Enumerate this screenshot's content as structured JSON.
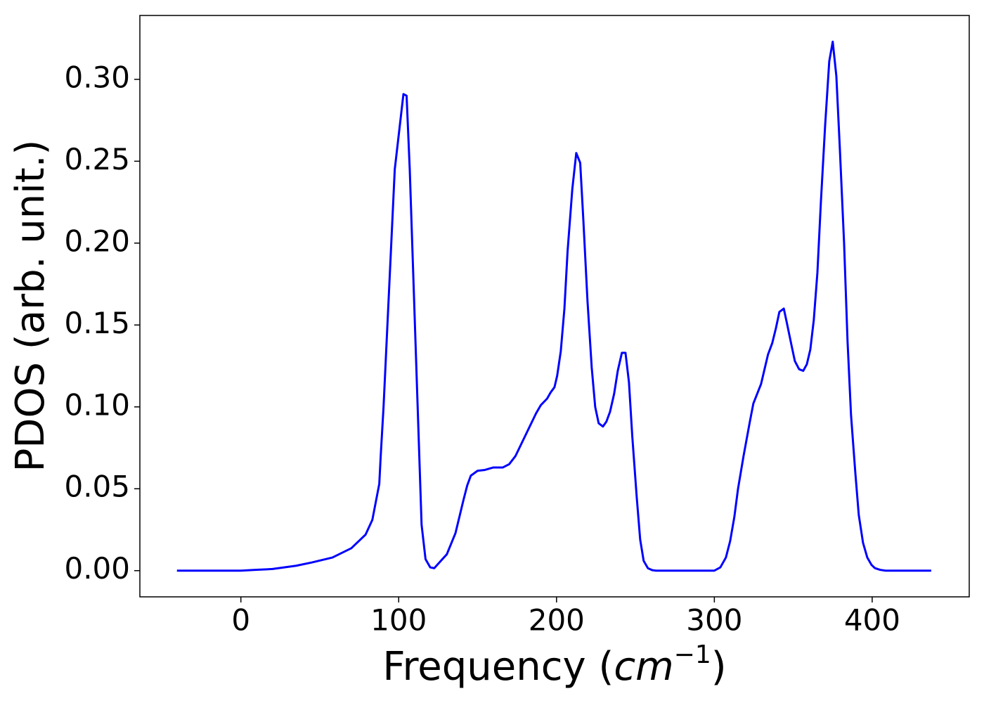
{
  "chart_data": {
    "type": "line",
    "xlabel": [
      "Frequency (",
      "cm",
      "−1",
      ")"
    ],
    "ylabel": "PDOS (arb. unit.)",
    "x": [
      -40.5,
      -20,
      0,
      10,
      20,
      35,
      45,
      58,
      70,
      79,
      83.3,
      85.5,
      87.7,
      88.6,
      90.4,
      95.3,
      97.5,
      103,
      105,
      107,
      112.7,
      114.5,
      117,
      120,
      122.5,
      130.5,
      136,
      141,
      143.4,
      145.7,
      150,
      154.6,
      160,
      166,
      170,
      174,
      178,
      187,
      190,
      194,
      196.4,
      198.7,
      200.4,
      202.7,
      205,
      207,
      210,
      212.5,
      215,
      217,
      219.6,
      222.3,
      224.5,
      226.7,
      229.4,
      231.6,
      233.9,
      236.5,
      238.8,
      241.4,
      243.7,
      245.9,
      248,
      250.8,
      253,
      255.2,
      257.9,
      260.6,
      263,
      300,
      303.8,
      307.3,
      310,
      312.7,
      315,
      318.5,
      322.5,
      324.7,
      329.6,
      334,
      336.7,
      339,
      341.2,
      344,
      346,
      348.8,
      351,
      353.7,
      356.3,
      358.6,
      360.8,
      363,
      365.3,
      367.5,
      370.2,
      372.8,
      375,
      377.3,
      379.5,
      382.2,
      384.4,
      386.6,
      389.3,
      391.5,
      394.2,
      396.9,
      399.6,
      401.8,
      405,
      408.5,
      437.4
    ],
    "series": [
      {
        "color": "#0000ff",
        "values": [
          0,
          0,
          0,
          0.0005,
          0.001,
          0.003,
          0.005,
          0.008,
          0.0137,
          0.022,
          0.031,
          0.042,
          0.053,
          0.07,
          0.1,
          0.2,
          0.245,
          0.291,
          0.29,
          0.245,
          0.08,
          0.028,
          0.007,
          0.002,
          0.0015,
          0.01,
          0.023,
          0.043,
          0.052,
          0.058,
          0.061,
          0.0615,
          0.063,
          0.063,
          0.065,
          0.07,
          0.078,
          0.096,
          0.101,
          0.105,
          0.109,
          0.112,
          0.119,
          0.134,
          0.16,
          0.195,
          0.233,
          0.255,
          0.249,
          0.214,
          0.165,
          0.124,
          0.1,
          0.09,
          0.088,
          0.091,
          0.097,
          0.108,
          0.122,
          0.133,
          0.133,
          0.115,
          0.082,
          0.045,
          0.019,
          0.006,
          0.0015,
          0.0003,
          0,
          0,
          0.002,
          0.008,
          0.018,
          0.033,
          0.05,
          0.07,
          0.091,
          0.102,
          0.114,
          0.132,
          0.139,
          0.148,
          0.158,
          0.16,
          0.151,
          0.138,
          0.128,
          0.123,
          0.122,
          0.126,
          0.135,
          0.153,
          0.182,
          0.225,
          0.272,
          0.311,
          0.323,
          0.302,
          0.258,
          0.2,
          0.14,
          0.095,
          0.06,
          0.034,
          0.017,
          0.008,
          0.0035,
          0.0015,
          0.0005,
          0,
          0
        ]
      }
    ],
    "xlim": [
      -64,
      461.5
    ],
    "ylim": [
      -0.016,
      0.339
    ],
    "xticks": [
      0,
      100,
      200,
      300,
      400
    ],
    "yticks": [
      {
        "value": 0,
        "label": "0.00"
      },
      {
        "value": 0.05,
        "label": "0.05"
      },
      {
        "value": 0.1,
        "label": "0.10"
      },
      {
        "value": 0.15,
        "label": "0.15"
      },
      {
        "value": 0.2,
        "label": "0.20"
      },
      {
        "value": 0.25,
        "label": "0.25"
      },
      {
        "value": 0.3,
        "label": "0.30"
      }
    ],
    "grid": false
  }
}
